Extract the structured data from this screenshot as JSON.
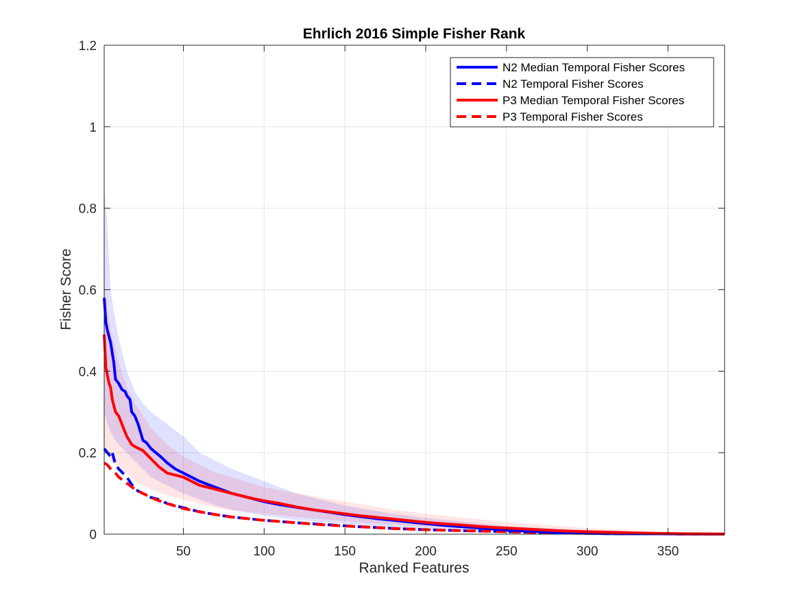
{
  "chart_data": {
    "type": "line",
    "title": "Ehrlich 2016 Simple Fisher Rank",
    "xlabel": "Ranked Features",
    "ylabel": "Fisher Score",
    "xlim": [
      1,
      385
    ],
    "ylim": [
      0,
      1.2
    ],
    "xticks": [
      50,
      100,
      150,
      200,
      250,
      300,
      350
    ],
    "yticks": [
      0,
      0.2,
      0.4,
      0.6,
      0.8,
      1,
      1.2
    ],
    "ytick_labels": [
      "0",
      "0.2",
      "0.4",
      "0.6",
      "0.8",
      "1",
      "1.2"
    ],
    "grid": true,
    "legend_position": "top-right",
    "series": [
      {
        "name": "N2 Median Temporal Fisher Scores",
        "color": "#0000ff",
        "style": "solid",
        "x": [
          1,
          2,
          3,
          5,
          7,
          8,
          10,
          12,
          14,
          15,
          17,
          18,
          20,
          22,
          25,
          27,
          30,
          33,
          36,
          40,
          45,
          50,
          55,
          60,
          70,
          80,
          90,
          100,
          110,
          120,
          130,
          140,
          150,
          160,
          170,
          180,
          190,
          200,
          210,
          220,
          230,
          240,
          250,
          260,
          270,
          280,
          290,
          300,
          320,
          340,
          360,
          385
        ],
        "y": [
          0.58,
          0.52,
          0.5,
          0.47,
          0.42,
          0.38,
          0.37,
          0.355,
          0.35,
          0.34,
          0.33,
          0.3,
          0.29,
          0.27,
          0.23,
          0.225,
          0.21,
          0.2,
          0.19,
          0.175,
          0.16,
          0.15,
          0.14,
          0.13,
          0.115,
          0.1,
          0.09,
          0.08,
          0.072,
          0.066,
          0.06,
          0.054,
          0.048,
          0.043,
          0.038,
          0.034,
          0.03,
          0.026,
          0.022,
          0.019,
          0.016,
          0.013,
          0.01,
          0.008,
          0.006,
          0.004,
          0.003,
          0.002,
          0.001,
          0.001,
          0.0005,
          0.0
        ]
      },
      {
        "name": "N2 Temporal Fisher Scores",
        "color": "#0000ff",
        "style": "dashed",
        "x": [
          1,
          3,
          5,
          6,
          8,
          10,
          15,
          20,
          25,
          30,
          35,
          40,
          50,
          60,
          70,
          80,
          90,
          100,
          120,
          140,
          160,
          180,
          200,
          220,
          240,
          260,
          280,
          300,
          320,
          340,
          360,
          385
        ],
        "y": [
          0.21,
          0.2,
          0.19,
          0.2,
          0.17,
          0.16,
          0.14,
          0.11,
          0.1,
          0.09,
          0.085,
          0.075,
          0.065,
          0.055,
          0.048,
          0.042,
          0.038,
          0.034,
          0.028,
          0.023,
          0.018,
          0.014,
          0.011,
          0.009,
          0.007,
          0.005,
          0.003,
          0.002,
          0.001,
          0.001,
          0.0005,
          0.0
        ]
      },
      {
        "name": "P3 Median Temporal Fisher Scores",
        "color": "#ff0000",
        "style": "solid",
        "x": [
          1,
          2,
          3,
          4,
          5,
          6,
          8,
          10,
          12,
          15,
          18,
          20,
          25,
          30,
          35,
          40,
          45,
          50,
          55,
          60,
          70,
          80,
          90,
          100,
          110,
          120,
          130,
          140,
          150,
          160,
          170,
          180,
          190,
          200,
          210,
          220,
          230,
          240,
          250,
          260,
          270,
          280,
          290,
          300,
          320,
          340,
          360,
          385
        ],
        "y": [
          0.49,
          0.41,
          0.39,
          0.37,
          0.36,
          0.33,
          0.3,
          0.29,
          0.27,
          0.24,
          0.22,
          0.215,
          0.205,
          0.185,
          0.165,
          0.15,
          0.145,
          0.14,
          0.13,
          0.12,
          0.11,
          0.1,
          0.09,
          0.082,
          0.075,
          0.067,
          0.06,
          0.055,
          0.05,
          0.045,
          0.041,
          0.037,
          0.033,
          0.029,
          0.026,
          0.023,
          0.02,
          0.017,
          0.015,
          0.013,
          0.011,
          0.009,
          0.007,
          0.006,
          0.004,
          0.002,
          0.001,
          0.0005
        ]
      },
      {
        "name": "P3 Temporal Fisher Scores",
        "color": "#ff0000",
        "style": "dashed",
        "x": [
          1,
          3,
          5,
          8,
          10,
          15,
          20,
          25,
          30,
          35,
          40,
          50,
          60,
          70,
          80,
          90,
          100,
          120,
          140,
          160,
          180,
          200,
          220,
          240,
          260,
          280,
          300,
          320,
          340,
          360,
          385
        ],
        "y": [
          0.175,
          0.17,
          0.16,
          0.15,
          0.14,
          0.125,
          0.11,
          0.1,
          0.09,
          0.082,
          0.075,
          0.063,
          0.055,
          0.048,
          0.042,
          0.038,
          0.034,
          0.028,
          0.022,
          0.018,
          0.014,
          0.011,
          0.009,
          0.007,
          0.005,
          0.003,
          0.002,
          0.001,
          0.001,
          0.0005,
          0.0
        ]
      }
    ],
    "bands": [
      {
        "series": "N2 Median Temporal Fisher Scores",
        "color": "#0000ff",
        "opacity": 0.12,
        "x": [
          1,
          3,
          5,
          8,
          10,
          15,
          20,
          25,
          30,
          40,
          50,
          60,
          70,
          80,
          100,
          120,
          150,
          180,
          200,
          250,
          300,
          350,
          385
        ],
        "upper": [
          0.85,
          0.75,
          0.6,
          0.52,
          0.48,
          0.4,
          0.35,
          0.32,
          0.3,
          0.27,
          0.24,
          0.2,
          0.18,
          0.16,
          0.13,
          0.1,
          0.07,
          0.05,
          0.04,
          0.02,
          0.01,
          0.004,
          0.0
        ],
        "lower": [
          0.3,
          0.27,
          0.25,
          0.23,
          0.22,
          0.2,
          0.18,
          0.16,
          0.14,
          0.12,
          0.1,
          0.085,
          0.07,
          0.06,
          0.045,
          0.035,
          0.025,
          0.015,
          0.01,
          0.005,
          0.002,
          0.001,
          0.0
        ]
      },
      {
        "series": "P3 Median Temporal Fisher Scores",
        "color": "#ff0000",
        "opacity": 0.1,
        "x": [
          1,
          3,
          5,
          8,
          10,
          15,
          20,
          25,
          30,
          40,
          50,
          60,
          70,
          80,
          100,
          120,
          150,
          180,
          200,
          250,
          300,
          350,
          385
        ],
        "upper": [
          0.62,
          0.55,
          0.5,
          0.45,
          0.42,
          0.36,
          0.32,
          0.29,
          0.26,
          0.22,
          0.19,
          0.17,
          0.15,
          0.14,
          0.115,
          0.1,
          0.08,
          0.06,
          0.05,
          0.03,
          0.015,
          0.005,
          0.0
        ],
        "lower": [
          0.22,
          0.2,
          0.18,
          0.17,
          0.16,
          0.15,
          0.13,
          0.12,
          0.11,
          0.095,
          0.085,
          0.075,
          0.065,
          0.058,
          0.05,
          0.042,
          0.032,
          0.024,
          0.018,
          0.01,
          0.005,
          0.002,
          0.0
        ]
      }
    ]
  }
}
